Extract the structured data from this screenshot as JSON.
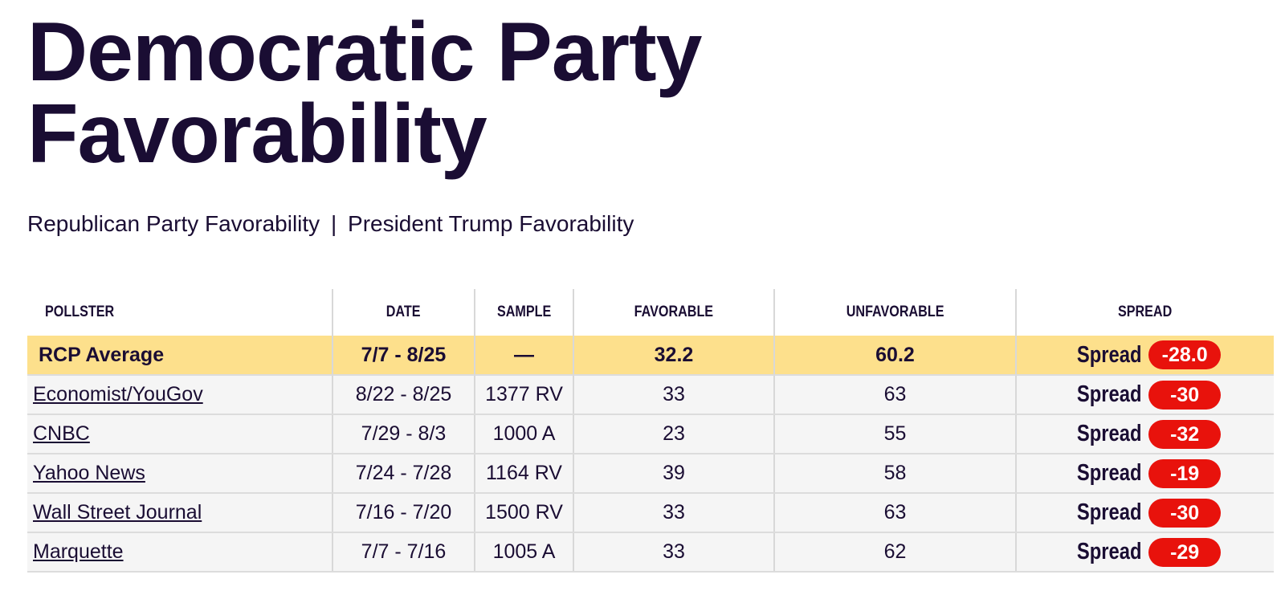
{
  "page": {
    "title_line1": "Democratic Party",
    "title_line2": "Favorability"
  },
  "subnav": {
    "links": [
      "Republican Party Favorability",
      "President Trump Favorability"
    ],
    "separator": "|"
  },
  "colors": {
    "title": "#1a0d33",
    "average_row": "#fde08c",
    "poll_row": "#f5f5f5",
    "spread_pill": "#e8120c"
  },
  "chart_data": {
    "type": "table",
    "columns": [
      "POLLSTER",
      "DATE",
      "SAMPLE",
      "FAVORABLE",
      "UNFAVORABLE",
      "SPREAD"
    ],
    "average": {
      "pollster": "RCP Average",
      "date": "7/7 - 8/25",
      "sample": "—",
      "favorable": "32.2",
      "unfavorable": "60.2",
      "spread_label": "Spread",
      "spread": "-28.0"
    },
    "rows": [
      {
        "pollster": "Economist/YouGov",
        "date": "8/22 - 8/25",
        "sample": "1377 RV",
        "favorable": "33",
        "unfavorable": "63",
        "spread_label": "Spread",
        "spread": "-30"
      },
      {
        "pollster": "CNBC",
        "date": "7/29 - 8/3",
        "sample": "1000 A",
        "favorable": "23",
        "unfavorable": "55",
        "spread_label": "Spread",
        "spread": "-32"
      },
      {
        "pollster": "Yahoo News",
        "date": "7/24 - 7/28",
        "sample": "1164 RV",
        "favorable": "39",
        "unfavorable": "58",
        "spread_label": "Spread",
        "spread": "-19"
      },
      {
        "pollster": "Wall Street Journal",
        "date": "7/16 - 7/20",
        "sample": "1500 RV",
        "favorable": "33",
        "unfavorable": "63",
        "spread_label": "Spread",
        "spread": "-30"
      },
      {
        "pollster": "Marquette",
        "date": "7/7 - 7/16",
        "sample": "1005 A",
        "favorable": "33",
        "unfavorable": "62",
        "spread_label": "Spread",
        "spread": "-29"
      }
    ]
  }
}
